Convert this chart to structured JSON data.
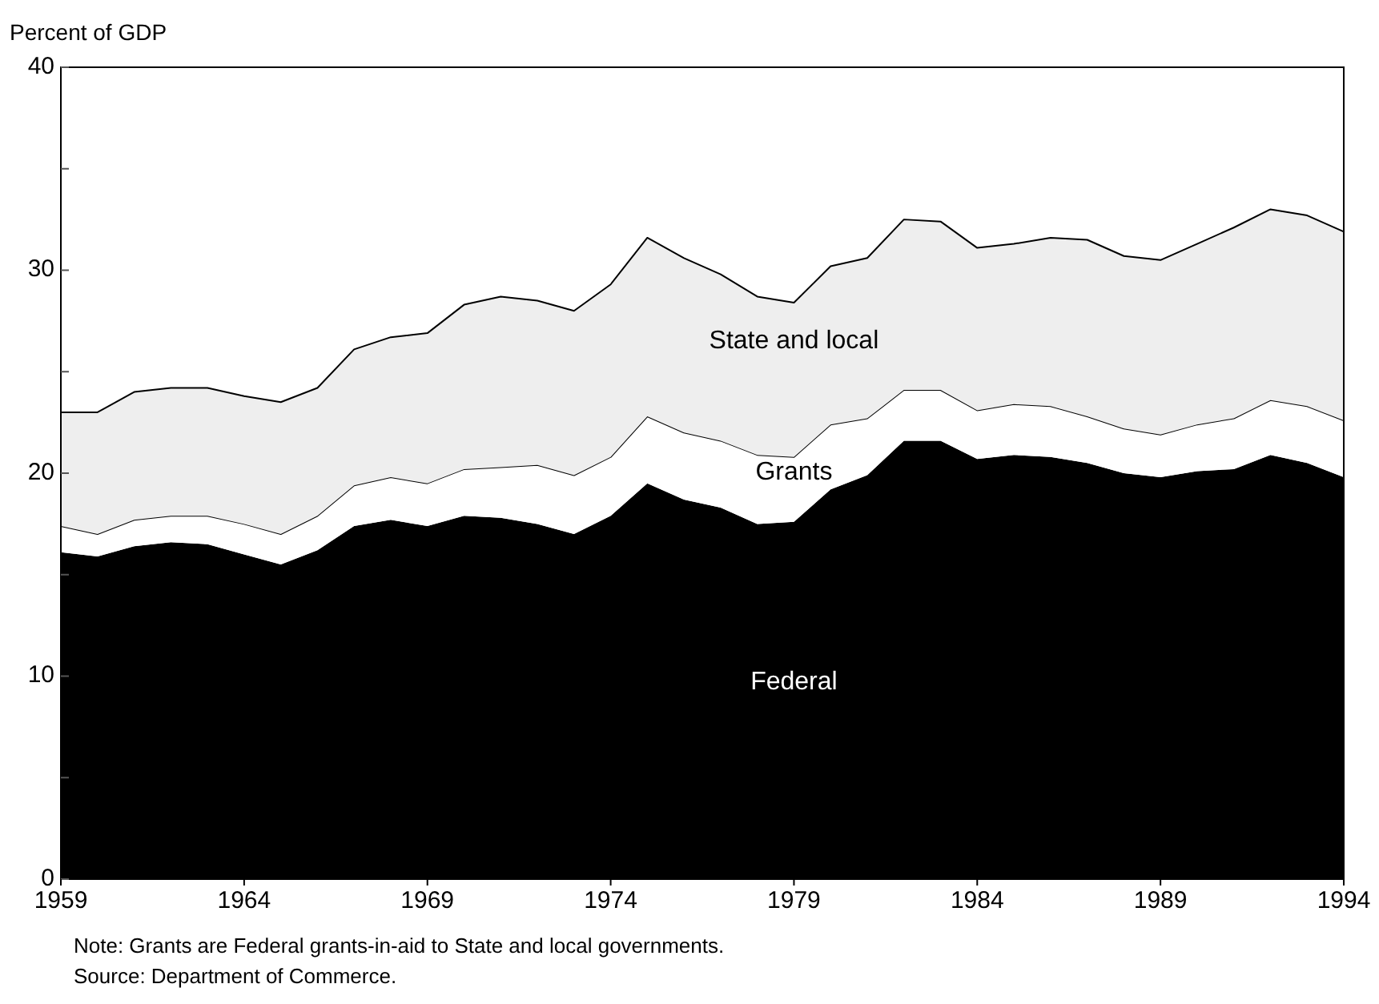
{
  "chart_data": {
    "type": "area",
    "stacked": true,
    "ylabel": "Percent of GDP",
    "x": [
      1959,
      1960,
      1961,
      1962,
      1963,
      1964,
      1965,
      1966,
      1967,
      1968,
      1969,
      1970,
      1971,
      1972,
      1973,
      1974,
      1975,
      1976,
      1977,
      1978,
      1979,
      1980,
      1981,
      1982,
      1983,
      1984,
      1985,
      1986,
      1987,
      1988,
      1989,
      1990,
      1991,
      1992,
      1993,
      1994
    ],
    "series": [
      {
        "name": "Federal",
        "color": "#000000",
        "values": [
          16.1,
          15.9,
          16.4,
          16.6,
          16.5,
          16.0,
          15.5,
          16.2,
          17.4,
          17.7,
          17.4,
          17.9,
          17.8,
          17.5,
          17.0,
          17.9,
          19.5,
          18.7,
          18.3,
          17.5,
          17.6,
          19.2,
          19.9,
          21.6,
          21.6,
          20.7,
          20.9,
          20.8,
          20.5,
          20.0,
          19.8,
          20.1,
          20.2,
          20.9,
          20.5,
          19.8
        ]
      },
      {
        "name": "Grants",
        "color": "#ffffff",
        "values": [
          1.3,
          1.1,
          1.3,
          1.3,
          1.4,
          1.5,
          1.5,
          1.7,
          2.0,
          2.1,
          2.1,
          2.3,
          2.5,
          2.9,
          2.9,
          2.9,
          3.3,
          3.3,
          3.3,
          3.4,
          3.2,
          3.2,
          2.8,
          2.5,
          2.5,
          2.4,
          2.5,
          2.5,
          2.3,
          2.2,
          2.1,
          2.3,
          2.5,
          2.7,
          2.8,
          2.8
        ]
      },
      {
        "name": "State and local",
        "color": "#eeeeee",
        "values": [
          5.6,
          6.0,
          6.3,
          6.3,
          6.3,
          6.3,
          6.5,
          6.3,
          6.7,
          6.9,
          7.4,
          8.1,
          8.4,
          8.1,
          8.1,
          8.5,
          8.8,
          8.6,
          8.2,
          7.8,
          7.6,
          7.8,
          7.9,
          8.4,
          8.3,
          8.0,
          7.9,
          8.3,
          8.7,
          8.5,
          8.6,
          8.9,
          9.4,
          9.4,
          9.4,
          9.3
        ]
      }
    ],
    "xlim": [
      1959,
      1994
    ],
    "xticks": [
      1959,
      1964,
      1969,
      1974,
      1979,
      1984,
      1989,
      1994
    ],
    "ylim": [
      0,
      40
    ],
    "yticks": [
      0,
      {
        "value": 5,
        "label": null
      },
      10,
      {
        "value": 15,
        "label": null
      },
      20,
      {
        "value": 25,
        "label": null
      },
      30,
      {
        "value": 35,
        "label": null
      },
      40
    ],
    "grid": false,
    "annotations": [
      "Note: Grants are Federal grants-in-aid to State and local governments.",
      "Source: Department of Commerce."
    ]
  }
}
